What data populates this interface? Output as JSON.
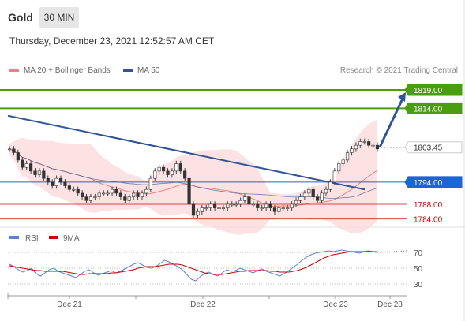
{
  "header": {
    "instrument": "Gold",
    "timeframe": "30 MIN",
    "datetime": "Thursday, December 23, 2021 12:52:57 AM CET"
  },
  "legend": {
    "ma20": "MA 20 + Bollinger Bands",
    "ma50": "MA 50",
    "ma20_color": "#f08080",
    "ma50_color": "#2f5597",
    "copyright": "Research © 2021 Trading Central"
  },
  "rsi_legend": {
    "rsi": "RSI",
    "ma": "9MA",
    "rsi_color": "#5b7fd6",
    "ma_color": "#cc0000"
  },
  "chart_data": [
    {
      "type": "line",
      "panel": "price",
      "ylim": [
        1782,
        1822
      ],
      "levels": [
        {
          "value": 1819.0,
          "label": "1819.00",
          "style": "resistance",
          "color": "#4a9d0f"
        },
        {
          "value": 1814.0,
          "label": "1814.00",
          "style": "resistance",
          "color": "#4a9d0f"
        },
        {
          "value": 1803.45,
          "label": "1803.45",
          "style": "last-price",
          "color": "#333333"
        },
        {
          "value": 1794.0,
          "label": "1794.00",
          "style": "pivot",
          "color": "#1a66d9"
        },
        {
          "value": 1788.0,
          "label": "1788.00",
          "style": "support",
          "color": "#cc0000"
        },
        {
          "value": 1784.0,
          "label": "1784.00",
          "style": "support",
          "color": "#cc0000"
        }
      ],
      "price_series": [
        1803,
        1802,
        1800,
        1798,
        1799,
        1797,
        1796,
        1797,
        1795,
        1794,
        1793,
        1795,
        1794,
        1793,
        1792,
        1792,
        1791,
        1790,
        1789,
        1790,
        1790,
        1791,
        1791,
        1791,
        1792,
        1791,
        1790,
        1789,
        1790,
        1791,
        1790,
        1791,
        1792,
        1795,
        1797,
        1798,
        1797,
        1796,
        1797,
        1799,
        1797,
        1795,
        1788,
        1785,
        1786,
        1787,
        1787,
        1788,
        1787,
        1787,
        1787,
        1788,
        1788,
        1788,
        1789,
        1790,
        1788,
        1788,
        1787,
        1787,
        1788,
        1787,
        1786,
        1787,
        1787,
        1787,
        1788,
        1789,
        1790,
        1791,
        1792,
        1790,
        1789,
        1791,
        1792,
        1794,
        1797,
        1799,
        1800,
        1802,
        1803,
        1804,
        1805,
        1805,
        1804,
        1804,
        1803
      ],
      "trendline": {
        "from": 1812,
        "to": 1792,
        "color": "#2f5597"
      },
      "forecast_arrow": {
        "from": 1803.45,
        "to": 1817.5,
        "color": "#2f5597"
      },
      "x_ticks": [
        "Dec 21",
        "Dec 22",
        "Dec 23",
        "Dec 28"
      ]
    },
    {
      "type": "line",
      "panel": "rsi",
      "ylim": [
        20,
        80
      ],
      "y_ticks": [
        70,
        50,
        30
      ],
      "series": [
        {
          "name": "RSI",
          "values": [
            55,
            52,
            48,
            45,
            47,
            50,
            43,
            40,
            44,
            48,
            50,
            46,
            44,
            42,
            40,
            38,
            42,
            46,
            48,
            44,
            41,
            43,
            45,
            47,
            44,
            46,
            49,
            52,
            55,
            57,
            54,
            51,
            50,
            52,
            56,
            60,
            58,
            55,
            52,
            48,
            42,
            36,
            34,
            39,
            43,
            45,
            42,
            40,
            44,
            48,
            46,
            47,
            50,
            48,
            46,
            44,
            47,
            49,
            46,
            44,
            42,
            40,
            43,
            47,
            51,
            55,
            60,
            64,
            67,
            69,
            70,
            71,
            72,
            71,
            72,
            73,
            72,
            71,
            70,
            69,
            71,
            72,
            71,
            70
          ]
        },
        {
          "name": "9MA",
          "values": [
            53,
            52,
            51,
            50,
            49,
            48,
            47,
            47,
            46,
            46,
            46,
            46,
            46,
            45,
            44,
            43,
            42,
            42,
            43,
            43,
            43,
            43,
            43,
            44,
            44,
            45,
            46,
            47,
            48,
            50,
            51,
            52,
            52,
            52,
            53,
            54,
            55,
            55,
            55,
            54,
            52,
            50,
            48,
            46,
            44,
            43,
            42,
            42,
            42,
            43,
            44,
            45,
            46,
            46,
            47,
            47,
            47,
            47,
            47,
            46,
            46,
            45,
            45,
            45,
            46,
            47,
            49,
            51,
            54,
            57,
            60,
            63,
            65,
            67,
            68,
            69,
            70,
            71,
            71,
            71,
            71,
            71,
            71,
            71
          ]
        }
      ]
    }
  ]
}
